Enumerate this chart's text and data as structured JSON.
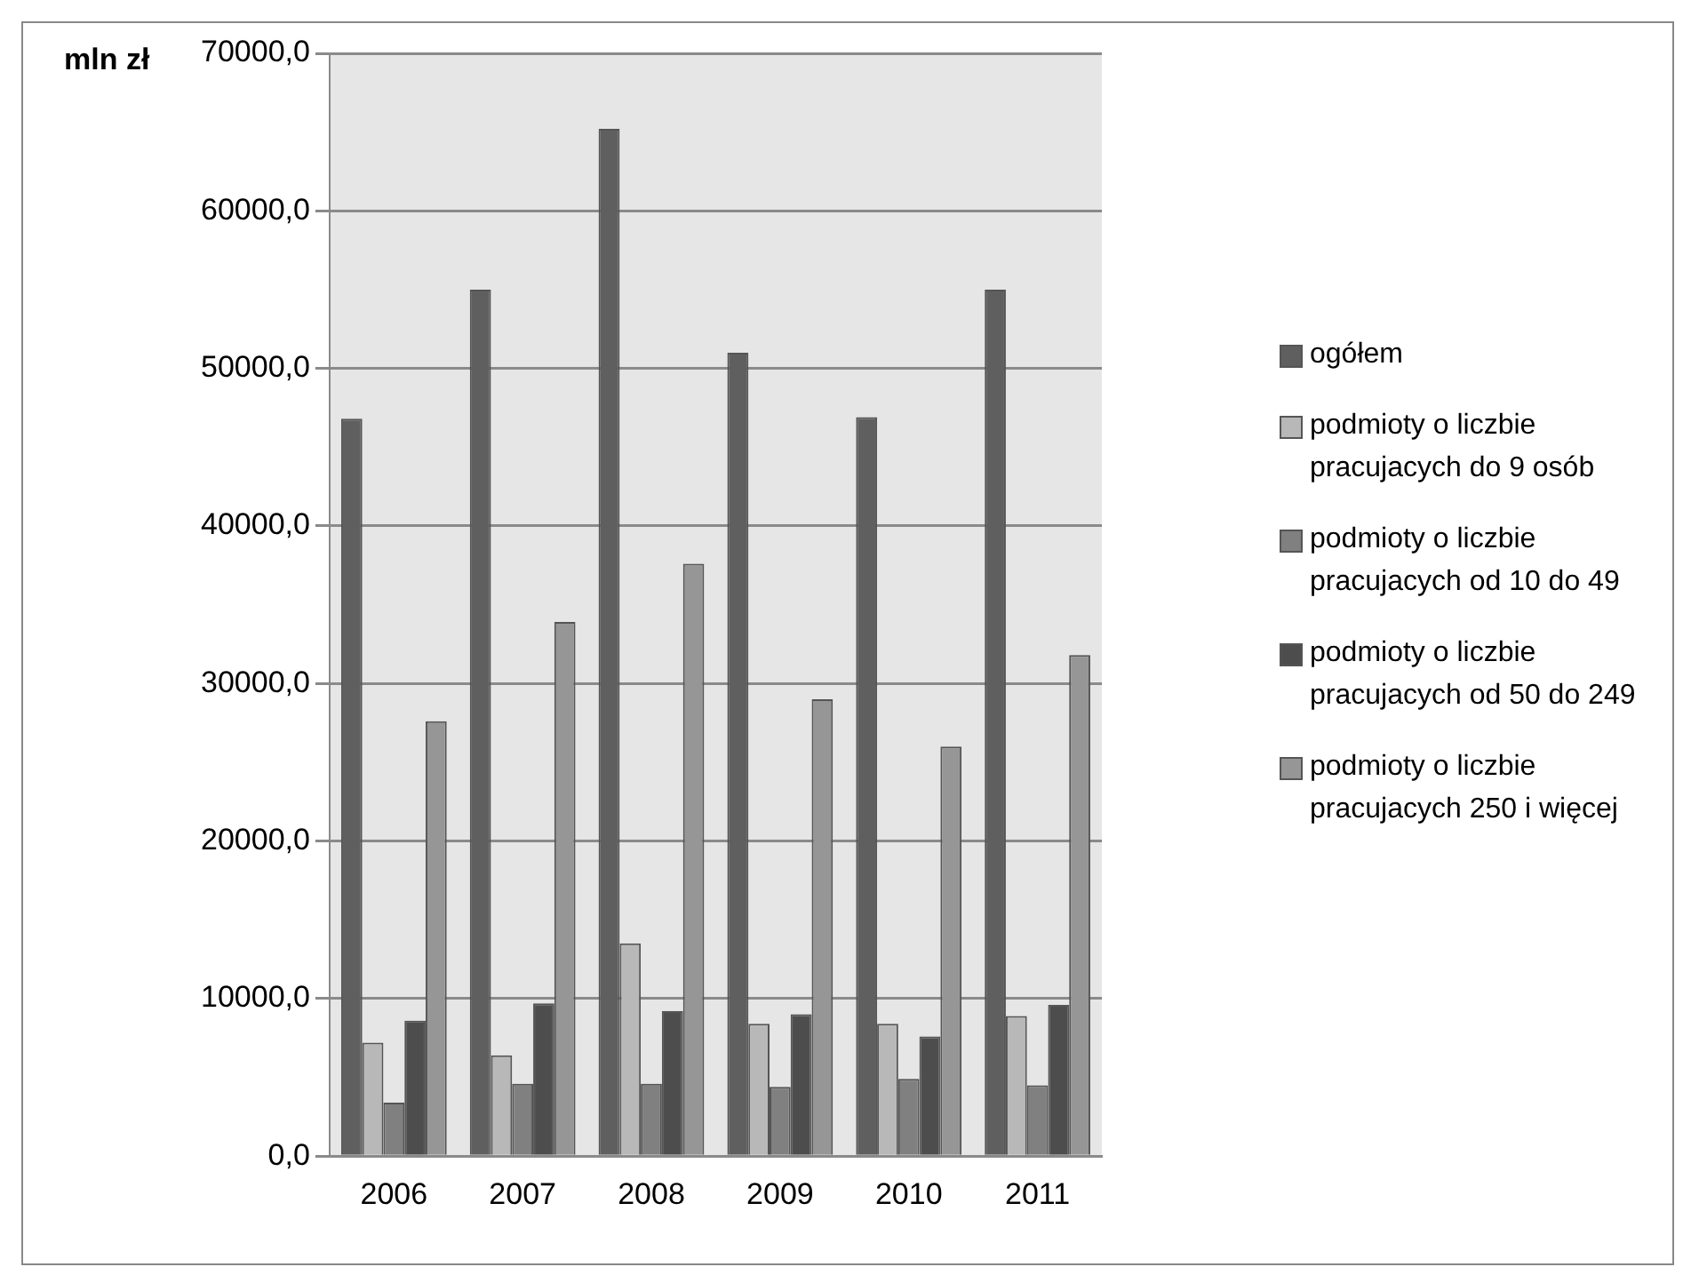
{
  "chart_data": {
    "type": "bar",
    "ylabel": "mln zł",
    "categories": [
      "2006",
      "2007",
      "2008",
      "2009",
      "2010",
      "2011"
    ],
    "series": [
      {
        "name": "ogółem",
        "color": "#5f5f5f",
        "values": [
          46800,
          55000,
          65200,
          51000,
          46900,
          55000
        ]
      },
      {
        "name": "podmioty o liczbie pracujacych do 9 osób",
        "color": "#b8b8b8",
        "values": [
          7200,
          6400,
          13500,
          8400,
          8400,
          8900
        ]
      },
      {
        "name": "podmioty o liczbie pracujacych od 10 do 49",
        "color": "#808080",
        "values": [
          3400,
          4600,
          4600,
          4400,
          4900,
          4500
        ]
      },
      {
        "name": "podmioty o liczbie pracujacych od 50 do 249",
        "color": "#4d4d4d",
        "values": [
          8600,
          9700,
          9200,
          9000,
          7600,
          9600
        ]
      },
      {
        "name": "podmioty o liczbie pracujacych 250 i więcej",
        "color": "#969696",
        "values": [
          27600,
          33900,
          37600,
          29000,
          26000,
          31800
        ]
      }
    ],
    "ylim": [
      0,
      70000
    ],
    "yticks": [
      {
        "value": 0,
        "label": "0,0"
      },
      {
        "value": 10000,
        "label": "10000,0"
      },
      {
        "value": 20000,
        "label": "20000,0"
      },
      {
        "value": 30000,
        "label": "30000,0"
      },
      {
        "value": 40000,
        "label": "40000,0"
      },
      {
        "value": 50000,
        "label": "50000,0"
      },
      {
        "value": 60000,
        "label": "60000,0"
      },
      {
        "value": 70000,
        "label": "70000,0"
      }
    ],
    "grid": "y",
    "legend": "right"
  }
}
